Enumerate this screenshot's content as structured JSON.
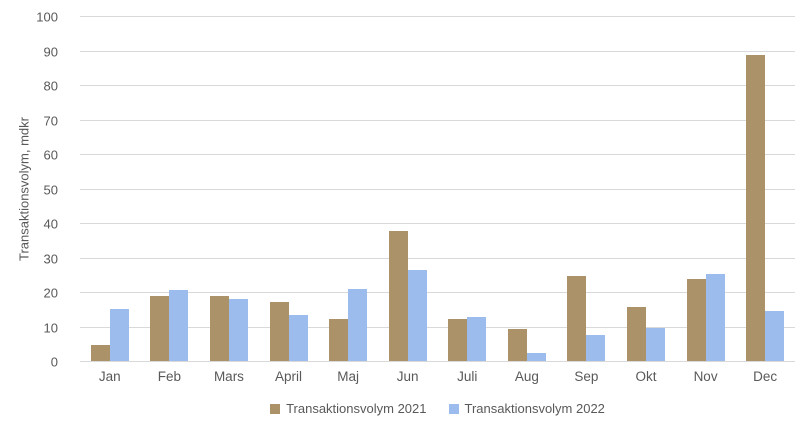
{
  "chart_data": {
    "type": "bar",
    "title": "",
    "xlabel": "",
    "ylabel": "Transaktionsvolym, mdkr",
    "ylim": [
      0,
      100
    ],
    "ytick_step": 10,
    "grid": true,
    "legend_position": "bottom-center",
    "categories": [
      "Jan",
      "Feb",
      "Mars",
      "April",
      "Maj",
      "Jun",
      "Juli",
      "Aug",
      "Sep",
      "Okt",
      "Nov",
      "Dec"
    ],
    "series": [
      {
        "name": "Transaktionsvolym 2021",
        "color": "#AC9268",
        "values": [
          5,
          19,
          19,
          17.5,
          12.5,
          38,
          12.5,
          9.5,
          25,
          16,
          24,
          89
        ]
      },
      {
        "name": "Transaktionsvolym 2022",
        "color": "#9DBCEE",
        "values": [
          15.5,
          21,
          18.3,
          13.7,
          21.3,
          26.7,
          13.1,
          2.7,
          7.8,
          10,
          25.5,
          14.7
        ]
      }
    ],
    "colors": {
      "grid": "#D9D9D9",
      "axis": "#D9D9D9",
      "text": "#595959",
      "background": "#FFFFFF"
    }
  }
}
